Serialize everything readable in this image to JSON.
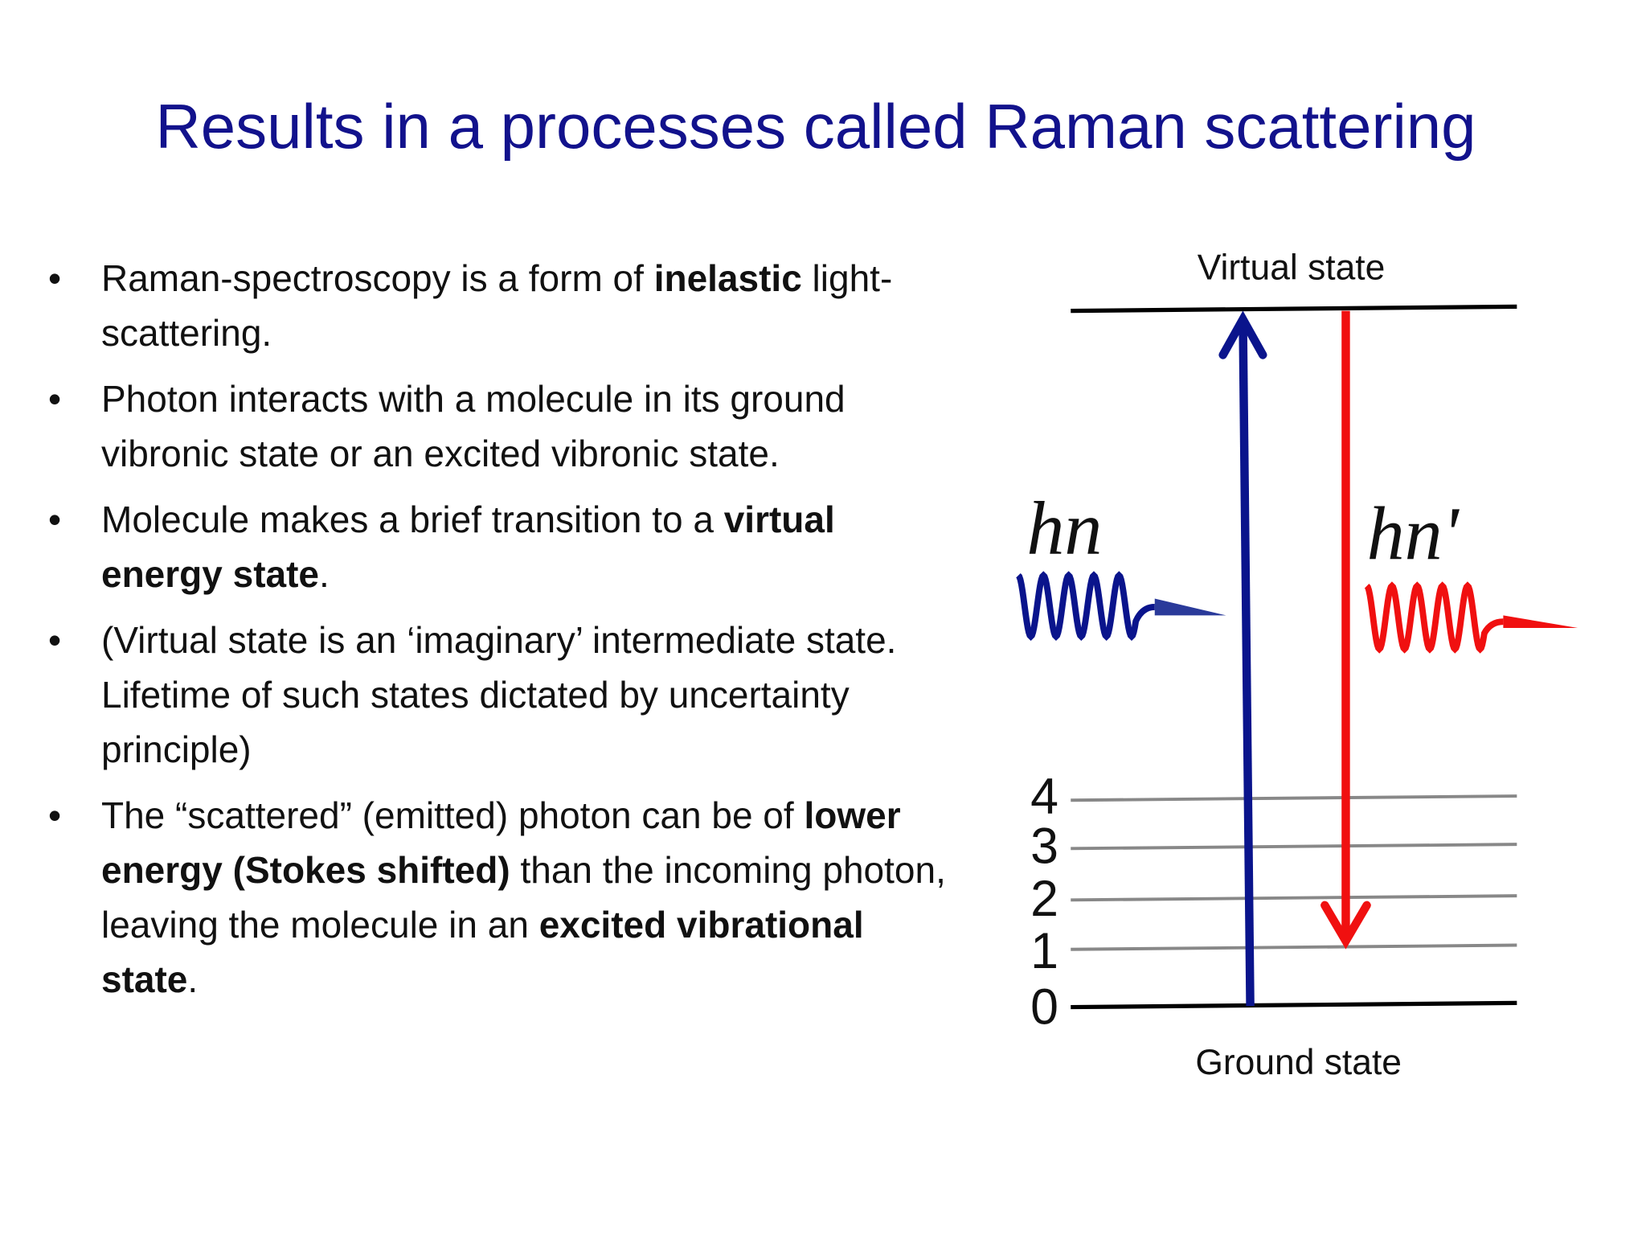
{
  "title": "Results in a processes called Raman scattering",
  "bullets": [
    [
      {
        "text": "Raman-spectroscopy is a form of ",
        "bold": false
      },
      {
        "text": "inelastic",
        "bold": true
      },
      {
        "text": " light-scattering.",
        "bold": false
      }
    ],
    [
      {
        "text": "Photon interacts with a molecule in its ground vibronic state or an excited vibronic state.",
        "bold": false
      }
    ],
    [
      {
        "text": "Molecule makes a brief transition to a ",
        "bold": false
      },
      {
        "text": "virtual energy state",
        "bold": true
      },
      {
        "text": ".",
        "bold": false
      }
    ],
    [
      {
        "text": "(Virtual state is an ‘imaginary’ intermediate state. Lifetime of such states dictated by uncertainty principle)",
        "bold": false
      }
    ],
    [
      {
        "text": "The “scattered” (emitted) photon can be of ",
        "bold": false
      },
      {
        "text": "lower energy (Stokes shifted)",
        "bold": true
      },
      {
        "text": " than the incoming photon, leaving the molecule in an ",
        "bold": false
      },
      {
        "text": "excited vibrational state",
        "bold": true
      },
      {
        "text": ".",
        "bold": false
      }
    ]
  ],
  "diagram": {
    "virtual_label": "Virtual state",
    "ground_label": "Ground state",
    "incident_label": "hn",
    "scattered_label": "hn'",
    "levels": [
      "4",
      "3",
      "2",
      "1",
      "0"
    ]
  }
}
